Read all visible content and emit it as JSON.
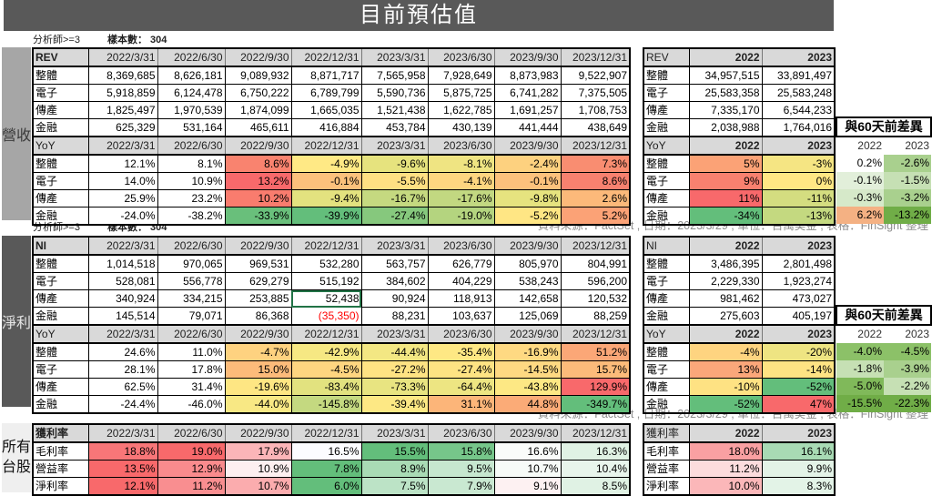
{
  "title": "目前預估值",
  "source_note": "資料來源：FactSet , 日期：2023/3/29 , 單位：百萬美金 , 表格：FinSight 整理",
  "revenue": {
    "caption": {
      "analysts": "分析師>=3",
      "sample": "樣本數： 304"
    },
    "side_label": "營收",
    "main": {
      "header": "REV",
      "columns": [
        "2022/3/31",
        "2022/6/30",
        "2022/9/30",
        "2022/12/31",
        "2023/3/31",
        "2023/6/30",
        "2023/9/30",
        "2023/12/31"
      ],
      "rows": [
        {
          "label": "整體",
          "values": [
            "8,369,685",
            "8,626,181",
            "9,089,932",
            "8,871,717",
            "7,565,958",
            "7,928,649",
            "8,873,983",
            "9,522,907"
          ]
        },
        {
          "label": "電子",
          "values": [
            "5,918,859",
            "6,124,478",
            "6,750,222",
            "6,789,799",
            "5,590,736",
            "5,875,725",
            "6,741,282",
            "7,375,505"
          ]
        },
        {
          "label": "傳產",
          "values": [
            "1,825,497",
            "1,970,539",
            "1,874,099",
            "1,665,035",
            "1,521,438",
            "1,622,785",
            "1,691,257",
            "1,708,753"
          ]
        },
        {
          "label": "金融",
          "values": [
            "625,329",
            "531,164",
            "465,611",
            "416,884",
            "453,784",
            "430,139",
            "441,444",
            "438,649"
          ]
        }
      ]
    },
    "yoy": {
      "header": "YoY",
      "columns": [
        "2022/3/31",
        "2022/6/30",
        "2022/9/30",
        "2022/12/31",
        "2023/3/31",
        "2023/6/30",
        "2023/9/30",
        "2023/12/31"
      ],
      "rows": [
        {
          "label": "整體",
          "values": [
            "12.1%",
            "8.1%",
            "8.6%",
            "-4.9%",
            "-9.6%",
            "-8.1%",
            "-2.4%",
            "7.3%"
          ],
          "colors": [
            "#ffffff",
            "#ffffff",
            "#f9836f",
            "#ffe985",
            "#e6e37e",
            "#efe482",
            "#fdd17f",
            "#f98d71"
          ]
        },
        {
          "label": "電子",
          "values": [
            "14.0%",
            "10.9%",
            "13.2%",
            "-0.1%",
            "-5.5%",
            "-4.1%",
            "-0.1%",
            "8.6%"
          ],
          "colors": [
            "#ffffff",
            "#ffffff",
            "#f8696b",
            "#fcc17c",
            "#ffe083",
            "#fed680",
            "#fcc17c",
            "#f8816f"
          ]
        },
        {
          "label": "傳產",
          "values": [
            "25.9%",
            "23.2%",
            "10.2%",
            "-9.4%",
            "-16.7%",
            "-17.6%",
            "-9.8%",
            "2.6%"
          ],
          "colors": [
            "#ffffff",
            "#ffffff",
            "#f97c6e",
            "#e3e27f",
            "#c5d980",
            "#c2d881",
            "#e6e37f",
            "#fcb97a"
          ]
        },
        {
          "label": "金融",
          "values": [
            "-24.0%",
            "-38.2%",
            "-33.9%",
            "-39.9%",
            "-27.4%",
            "-19.0%",
            "-5.2%",
            "5.2%"
          ],
          "colors": [
            "#ffffff",
            "#ffffff",
            "#69bf7b",
            "#63be7b",
            "#86c87d",
            "#b4d47f",
            "#ffe684",
            "#fba276"
          ]
        }
      ]
    },
    "annual": {
      "header": "REV",
      "columns": [
        "2022",
        "2023"
      ],
      "rows": [
        {
          "label": "整體",
          "values": [
            "34,957,515",
            "33,891,497"
          ]
        },
        {
          "label": "電子",
          "values": [
            "25,583,358",
            "25,583,248"
          ]
        },
        {
          "label": "傳產",
          "values": [
            "7,335,170",
            "6,544,233"
          ]
        },
        {
          "label": "金融",
          "values": [
            "2,038,988",
            "1,764,016"
          ]
        }
      ]
    },
    "annual_yoy": {
      "header": "YoY",
      "columns": [
        "2022",
        "2023"
      ],
      "rows": [
        {
          "label": "整體",
          "values": [
            "5%",
            "-3%"
          ],
          "colors": [
            "#fba276",
            "#f5e583"
          ]
        },
        {
          "label": "電子",
          "values": [
            "9%",
            "0%"
          ],
          "colors": [
            "#f8816f",
            "#ffe784"
          ]
        },
        {
          "label": "傳產",
          "values": [
            "11%",
            "-11%"
          ],
          "colors": [
            "#f8696b",
            "#d4dd80"
          ]
        },
        {
          "label": "金融",
          "values": [
            "-34%",
            "-13%"
          ],
          "colors": [
            "#63be7b",
            "#c4d980"
          ]
        }
      ]
    },
    "diff": {
      "title": "與60天前差異",
      "columns": [
        "2022",
        "2023"
      ],
      "rows": [
        {
          "values": [
            "0.2%",
            "-2.6%"
          ],
          "colors": [
            "#ffffff",
            "#a9d08e"
          ]
        },
        {
          "values": [
            "-0.1%",
            "-1.5%"
          ],
          "colors": [
            "#e2efda",
            "#c6e0b4"
          ]
        },
        {
          "values": [
            "-0.3%",
            "-3.2%"
          ],
          "colors": [
            "#d6e9c9",
            "#a9d08e"
          ]
        },
        {
          "values": [
            "6.2%",
            "-13.2%"
          ],
          "colors": [
            "#f4b183",
            "#70ad47"
          ]
        }
      ]
    }
  },
  "net_income": {
    "caption": {
      "analysts": "分析師>=3",
      "sample": "樣本數： 304"
    },
    "side_label": "淨利",
    "main": {
      "header": "NI",
      "columns": [
        "2022/3/31",
        "2022/6/30",
        "2022/9/30",
        "2022/12/31",
        "2023/3/31",
        "2023/6/30",
        "2023/9/30",
        "2023/12/31"
      ],
      "rows": [
        {
          "label": "整體",
          "values": [
            "1,014,518",
            "970,065",
            "969,531",
            "532,280",
            "563,757",
            "626,779",
            "805,970",
            "804,991"
          ]
        },
        {
          "label": "電子",
          "values": [
            "528,081",
            "556,778",
            "629,279",
            "515,192",
            "384,602",
            "404,229",
            "538,243",
            "596,200"
          ]
        },
        {
          "label": "傳產",
          "values": [
            "340,924",
            "334,215",
            "253,885",
            "52,438",
            "90,924",
            "118,913",
            "142,658",
            "120,532"
          ]
        },
        {
          "label": "金融",
          "values": [
            "145,514",
            "79,071",
            "86,368",
            "(35,350)",
            "88,231",
            "103,637",
            "125,069",
            "88,259"
          ]
        }
      ]
    },
    "yoy": {
      "header": "YoY",
      "columns": [
        "2022/3/31",
        "2022/6/30",
        "2022/9/30",
        "2022/12/31",
        "2023/3/31",
        "2023/6/30",
        "2023/9/30",
        "2023/12/31"
      ],
      "rows": [
        {
          "label": "整體",
          "values": [
            "24.6%",
            "11.0%",
            "-4.7%",
            "-42.9%",
            "-44.4%",
            "-35.4%",
            "-16.9%",
            "51.2%"
          ],
          "colors": [
            "#ffffff",
            "#ffffff",
            "#fed280",
            "#f6e883",
            "#f3e783",
            "#fee884",
            "#fed982",
            "#fba777"
          ]
        },
        {
          "label": "電子",
          "values": [
            "28.1%",
            "17.8%",
            "15.0%",
            "-4.5%",
            "-27.2%",
            "-27.4%",
            "-14.5%",
            "15.7%"
          ],
          "colors": [
            "#ffffff",
            "#ffffff",
            "#fcbb7a",
            "#fed680",
            "#fee383",
            "#fee383",
            "#fed982",
            "#fcbb7a"
          ]
        },
        {
          "label": "傳產",
          "values": [
            "62.5%",
            "31.4%",
            "-19.6%",
            "-83.4%",
            "-73.3%",
            "-64.4%",
            "-43.8%",
            "129.9%"
          ],
          "colors": [
            "#ffffff",
            "#ffffff",
            "#fee683",
            "#e2e27f",
            "#e8e481",
            "#ede582",
            "#fde884",
            "#f8696b"
          ]
        },
        {
          "label": "金融",
          "values": [
            "-24.4%",
            "-46.0%",
            "-44.0%",
            "-145.8%",
            "-39.4%",
            "31.1%",
            "44.8%",
            "-349.7%"
          ],
          "colors": [
            "#ffffff",
            "#ffffff",
            "#f8e884",
            "#c4d980",
            "#fde884",
            "#fcb579",
            "#fbab77",
            "#63be7b"
          ]
        }
      ]
    },
    "annual": {
      "header": "NI",
      "columns": [
        "2022",
        "2023"
      ],
      "rows": [
        {
          "label": "整體",
          "values": [
            "3,486,395",
            "2,801,498"
          ]
        },
        {
          "label": "電子",
          "values": [
            "2,229,330",
            "1,923,274"
          ]
        },
        {
          "label": "傳產",
          "values": [
            "981,462",
            "473,027"
          ]
        },
        {
          "label": "金融",
          "values": [
            "275,603",
            "405,197"
          ]
        }
      ]
    },
    "annual_yoy": {
      "header": "YoY",
      "columns": [
        "2022",
        "2023"
      ],
      "rows": [
        {
          "label": "整體",
          "values": [
            "-4%",
            "-20%"
          ],
          "colors": [
            "#fed480",
            "#eee482"
          ]
        },
        {
          "label": "電子",
          "values": [
            "13%",
            "-14%"
          ],
          "colors": [
            "#fba77a",
            "#fee383"
          ]
        },
        {
          "label": "傳產",
          "values": [
            "-10%",
            "-52%"
          ],
          "colors": [
            "#fee283",
            "#63be7b"
          ]
        },
        {
          "label": "金融",
          "values": [
            "-52%",
            "47%"
          ],
          "colors": [
            "#63be7b",
            "#f8696b"
          ]
        }
      ]
    },
    "diff": {
      "title": "與60天前差異",
      "columns": [
        "2022",
        "2023"
      ],
      "rows": [
        {
          "values": [
            "-4.0%",
            "-4.5%"
          ],
          "colors": [
            "#8cc168",
            "#8cc168"
          ]
        },
        {
          "values": [
            "-1.8%",
            "-3.9%"
          ],
          "colors": [
            "#c6e0b4",
            "#a9d08e"
          ]
        },
        {
          "values": [
            "-5.0%",
            "-2.2%"
          ],
          "colors": [
            "#80b95a",
            "#c6e0b4"
          ]
        },
        {
          "values": [
            "-15.5%",
            "-22.3%"
          ],
          "colors": [
            "#70ad47",
            "#70ad47"
          ]
        }
      ]
    }
  },
  "margins": {
    "side_label": "所有台股",
    "main": {
      "header": "獲利率",
      "columns": [
        "2022/3/31",
        "2022/6/30",
        "2022/9/30",
        "2022/12/31",
        "2023/3/31",
        "2023/6/30",
        "2023/9/30",
        "2023/12/31"
      ],
      "rows": [
        {
          "label": "毛利率",
          "values": [
            "18.8%",
            "19.0%",
            "17.9%",
            "16.5%",
            "15.5%",
            "15.8%",
            "16.6%",
            "16.3%"
          ],
          "colors": [
            "#f87678",
            "#f8696b",
            "#fbb5b8",
            "#fcfcff",
            "#63be7b",
            "#76c68a",
            "#fafcfa",
            "#e0f2e4"
          ]
        },
        {
          "label": "營益率",
          "values": [
            "13.5%",
            "12.9%",
            "10.9%",
            "7.8%",
            "8.9%",
            "9.5%",
            "10.7%",
            "10.4%"
          ],
          "colors": [
            "#f8696b",
            "#f98b8d",
            "#fdeff0",
            "#63be7b",
            "#a9dbb5",
            "#c6e7cf",
            "#f7fbf8",
            "#e8f5ec"
          ]
        },
        {
          "label": "淨利率",
          "values": [
            "12.1%",
            "11.2%",
            "10.7%",
            "6.0%",
            "7.5%",
            "7.9%",
            "9.1%",
            "8.5%"
          ],
          "colors": [
            "#f8696b",
            "#f98e90",
            "#fbacae",
            "#63be7b",
            "#bce3c6",
            "#c9e8d1",
            "#fdf1f2",
            "#e0f2e4"
          ]
        }
      ]
    },
    "annual": {
      "header": "獲利率",
      "columns": [
        "2022",
        "2023"
      ],
      "rows": [
        {
          "label": "毛利率",
          "values": [
            "18.0%",
            "16.1%"
          ],
          "colors": [
            "#f9a0a2",
            "#a8dab4"
          ]
        },
        {
          "label": "營益率",
          "values": [
            "11.2%",
            "9.9%"
          ],
          "colors": [
            "#fcdcdd",
            "#e3f3e7"
          ]
        },
        {
          "label": "淨利率",
          "values": [
            "10.0%",
            "8.3%"
          ],
          "colors": [
            "#fbb7b9",
            "#e3f3e7"
          ]
        }
      ]
    }
  }
}
